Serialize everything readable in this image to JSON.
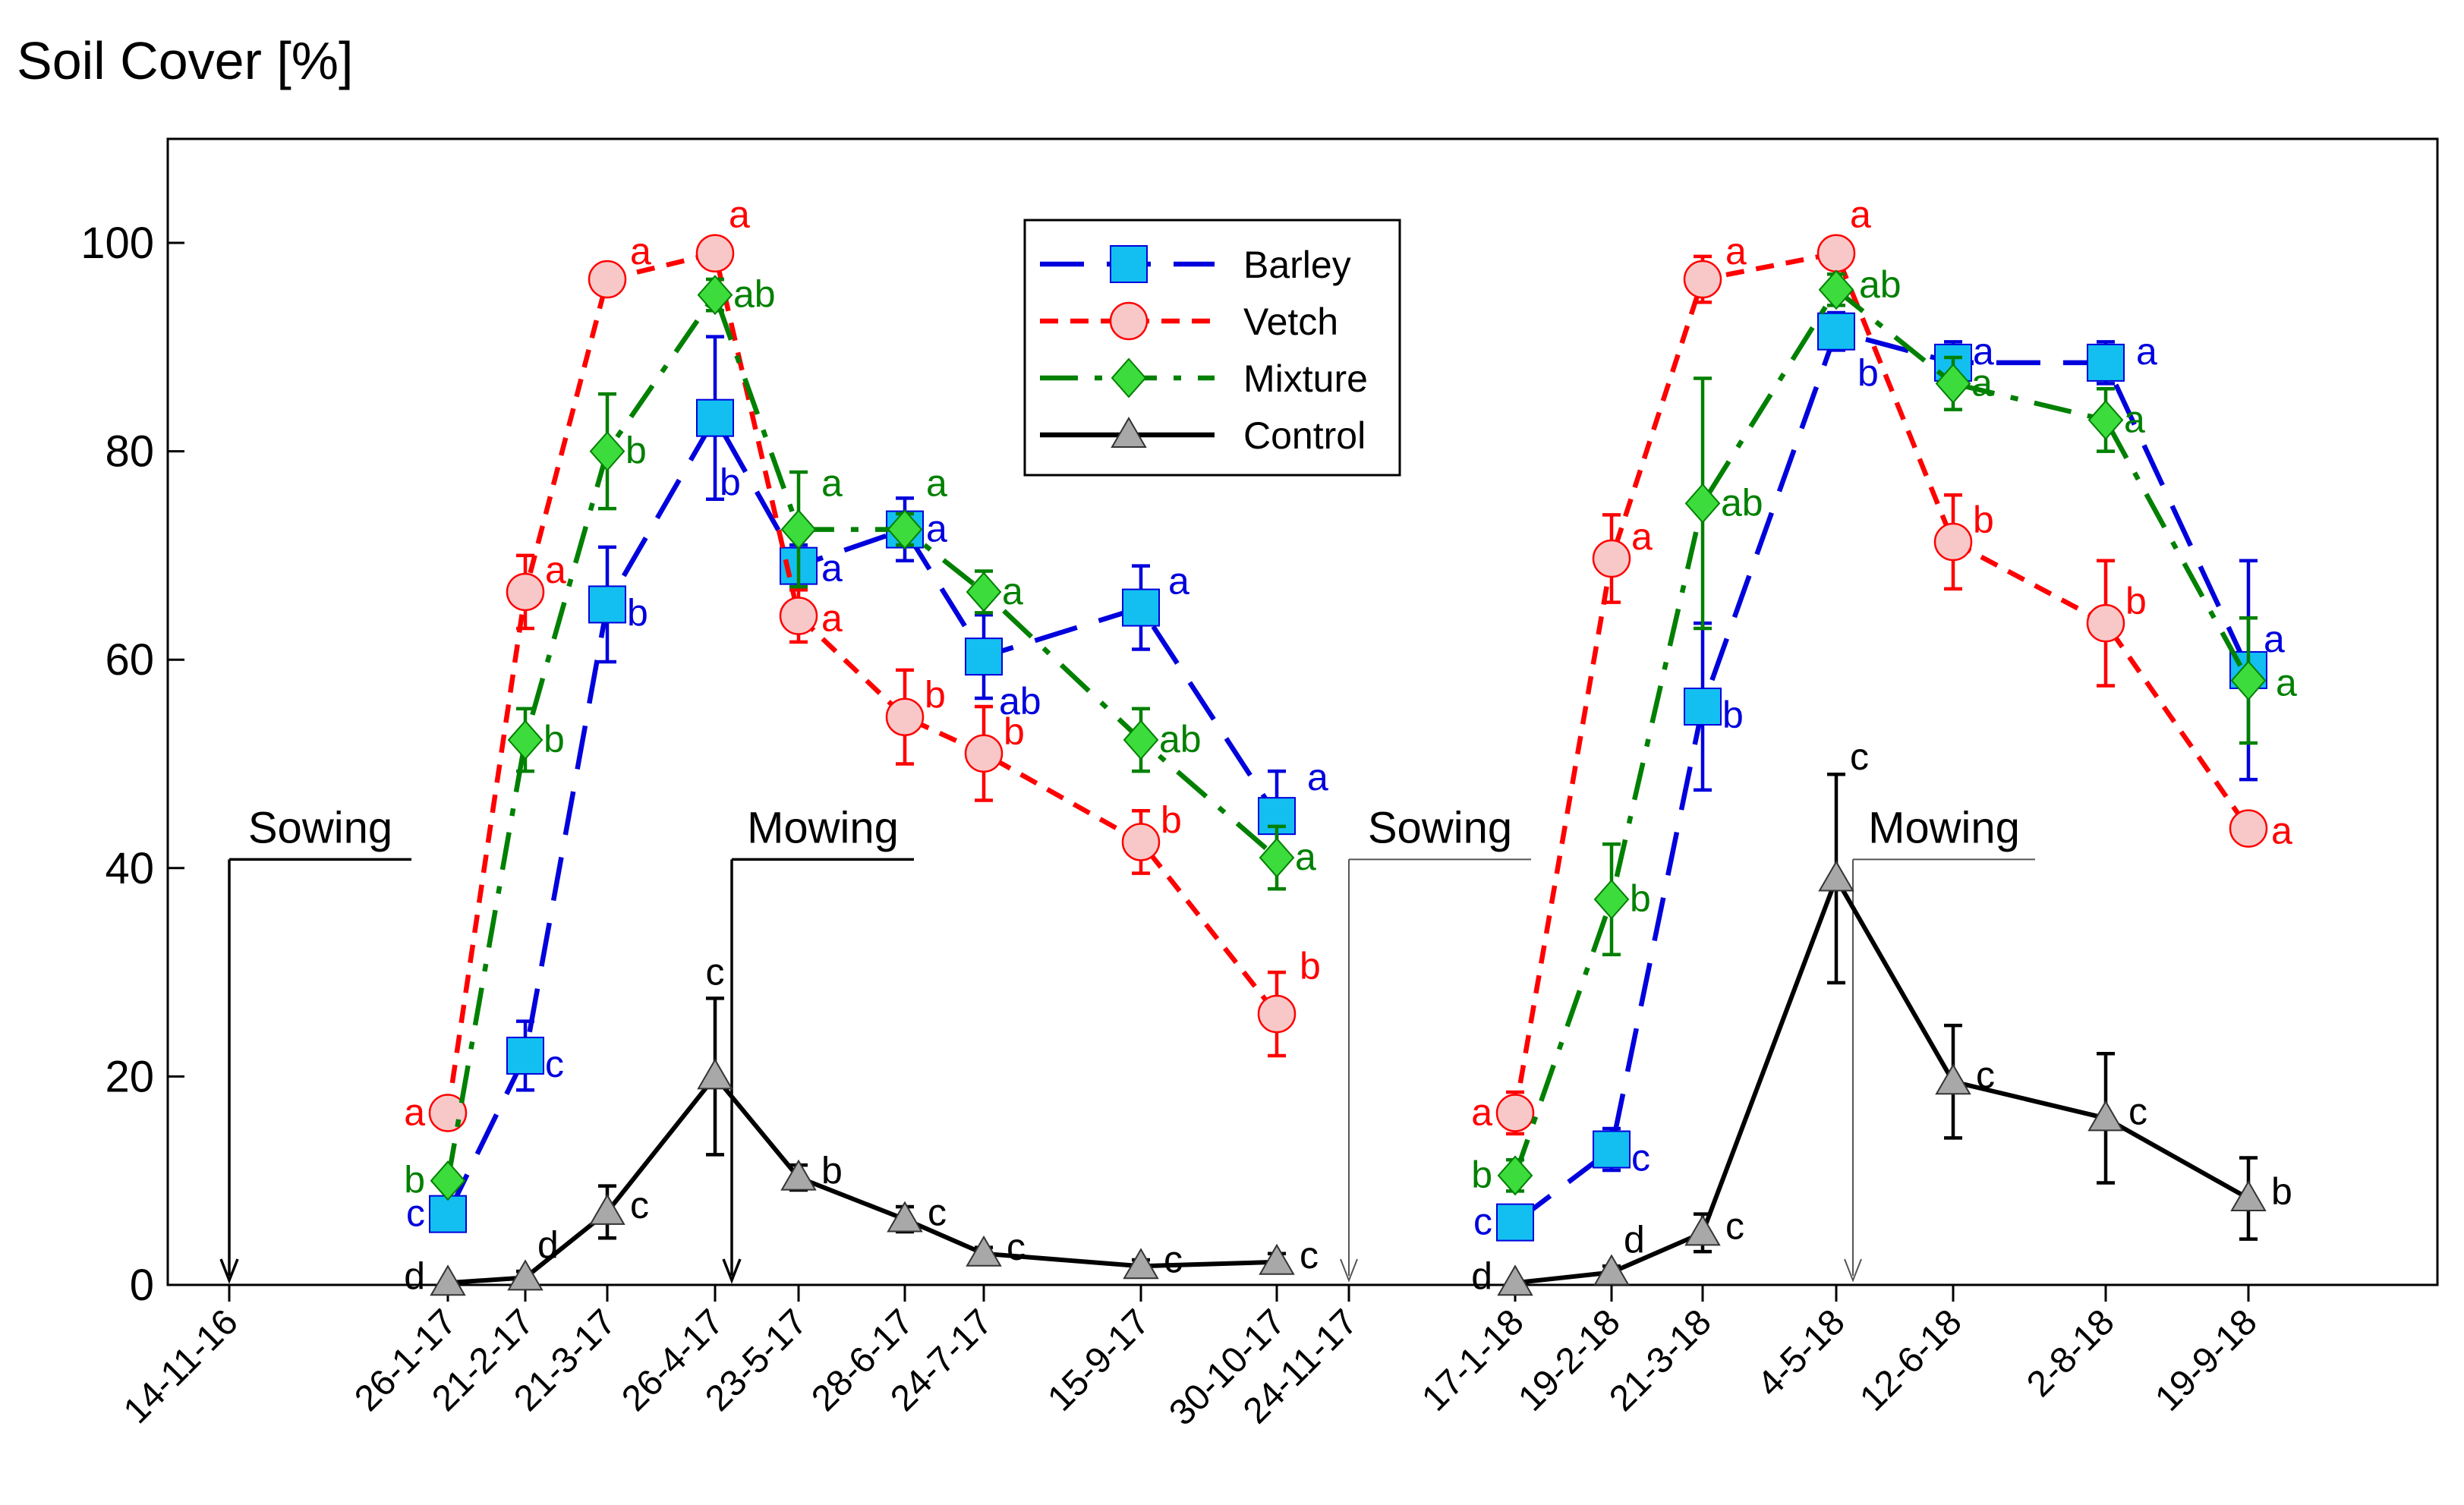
{
  "chart_data": {
    "type": "line",
    "title": "Soil Cover [%]",
    "xlabel": "",
    "ylabel": "",
    "ylim": [
      0,
      110
    ],
    "yticks": [
      0,
      20,
      40,
      60,
      80,
      100
    ],
    "grid": false,
    "legend_position": "top-center",
    "dates": [
      "14-11-16",
      "26-1-17",
      "21-2-17",
      "21-3-17",
      "26-4-17",
      "23-5-17",
      "28-6-17",
      "24-7-17",
      "15-9-17",
      "30-10-17",
      "24-11-17",
      "17-1-18",
      "19-2-18",
      "21-3-18",
      "4-5-18",
      "12-6-18",
      "2-8-18",
      "19-9-18"
    ],
    "series": [
      {
        "name": "Barley",
        "color": "#0000dd",
        "marker": "square",
        "marker_color": "#13bff0",
        "dash": "dashed",
        "segments": [
          [
            {
              "x": "26-1-17",
              "y": 6.8,
              "err": 0.8,
              "sig": "c"
            },
            {
              "x": "21-2-17",
              "y": 22,
              "err": 3.3,
              "sig": "c"
            },
            {
              "x": "21-3-17",
              "y": 65.3,
              "err": 5.5,
              "sig": "b"
            },
            {
              "x": "26-4-17",
              "y": 83.2,
              "err": 7.8,
              "sig": "b"
            },
            {
              "x": "23-5-17",
              "y": 69,
              "err": 2,
              "sig": "a"
            },
            {
              "x": "28-6-17",
              "y": 72.5,
              "err": 3,
              "sig": "a"
            },
            {
              "x": "24-7-17",
              "y": 60.3,
              "err": 4,
              "sig": "ab"
            },
            {
              "x": "15-9-17",
              "y": 65,
              "err": 4,
              "sig": "a"
            },
            {
              "x": "30-10-17",
              "y": 45,
              "err": 4.3,
              "sig": "a"
            }
          ],
          [
            {
              "x": "17-1-18",
              "y": 6,
              "err": 1,
              "sig": "c"
            },
            {
              "x": "19-2-18",
              "y": 13,
              "err": 2,
              "sig": "c"
            },
            {
              "x": "21-3-18",
              "y": 55.5,
              "err": 8,
              "sig": "b"
            },
            {
              "x": "4-5-18",
              "y": 91.5,
              "err": 1.8,
              "sig": "b"
            },
            {
              "x": "12-6-18",
              "y": 88.5,
              "err": 2,
              "sig": "a"
            },
            {
              "x": "2-8-18",
              "y": 88.5,
              "err": 2,
              "sig": "a"
            },
            {
              "x": "19-9-18",
              "y": 59,
              "err": 10.5,
              "sig": "a"
            }
          ]
        ]
      },
      {
        "name": "Vetch",
        "color": "#ff0000",
        "marker": "circle",
        "marker_color": "#f8c8c8",
        "dash": "short-dashed",
        "segments": [
          [
            {
              "x": "26-1-17",
              "y": 16.5,
              "err": 1.2,
              "sig": "a"
            },
            {
              "x": "21-2-17",
              "y": 66.5,
              "err": 3.5,
              "sig": "a"
            },
            {
              "x": "21-3-17",
              "y": 96.5,
              "err": 0.8,
              "sig": "a"
            },
            {
              "x": "26-4-17",
              "y": 99,
              "err": 1.2,
              "sig": "a"
            },
            {
              "x": "23-5-17",
              "y": 64.2,
              "err": 2.5,
              "sig": "a"
            },
            {
              "x": "28-6-17",
              "y": 54.5,
              "err": 4.5,
              "sig": "b"
            },
            {
              "x": "24-7-17",
              "y": 51,
              "err": 4.5,
              "sig": "b"
            },
            {
              "x": "15-9-17",
              "y": 42.5,
              "err": 3,
              "sig": "b"
            },
            {
              "x": "30-10-17",
              "y": 26,
              "err": 4,
              "sig": "b"
            }
          ],
          [
            {
              "x": "17-1-18",
              "y": 16.5,
              "err": 2,
              "sig": "a"
            },
            {
              "x": "19-2-18",
              "y": 69.7,
              "err": 4.2,
              "sig": "a"
            },
            {
              "x": "21-3-18",
              "y": 96.5,
              "err": 2.2,
              "sig": "a"
            },
            {
              "x": "4-5-18",
              "y": 99,
              "err": 0.8,
              "sig": "a"
            },
            {
              "x": "12-6-18",
              "y": 71.3,
              "err": 4.5,
              "sig": "b"
            },
            {
              "x": "2-8-18",
              "y": 63.5,
              "err": 6,
              "sig": "b"
            },
            {
              "x": "19-9-18",
              "y": 43.8,
              "err": 0.8,
              "sig": "a"
            }
          ]
        ]
      },
      {
        "name": "Mixture",
        "color": "#008000",
        "marker": "diamond",
        "marker_color": "#3cdc3c",
        "dash": "dash-dot",
        "segments": [
          [
            {
              "x": "26-1-17",
              "y": 10,
              "err": 0.8,
              "sig": "b"
            },
            {
              "x": "21-2-17",
              "y": 52.3,
              "err": 3,
              "sig": "b"
            },
            {
              "x": "21-3-17",
              "y": 80,
              "err": 5.5,
              "sig": "b"
            },
            {
              "x": "26-4-17",
              "y": 95,
              "err": 1.5,
              "sig": "ab"
            },
            {
              "x": "23-5-17",
              "y": 72.5,
              "err": 5.5,
              "sig": "a"
            },
            {
              "x": "28-6-17",
              "y": 72.5,
              "err": 1.5,
              "sig": "a"
            },
            {
              "x": "24-7-17",
              "y": 66.5,
              "err": 2,
              "sig": "a"
            },
            {
              "x": "15-9-17",
              "y": 52.3,
              "err": 3,
              "sig": "ab"
            },
            {
              "x": "30-10-17",
              "y": 41,
              "err": 3,
              "sig": "a"
            }
          ],
          [
            {
              "x": "17-1-18",
              "y": 10.5,
              "err": 1.5,
              "sig": "b"
            },
            {
              "x": "19-2-18",
              "y": 37,
              "err": 5.3,
              "sig": "b"
            },
            {
              "x": "21-3-18",
              "y": 75,
              "err": 12,
              "sig": "ab"
            },
            {
              "x": "4-5-18",
              "y": 95.5,
              "err": 1.5,
              "sig": "ab"
            },
            {
              "x": "12-6-18",
              "y": 86.5,
              "err": 2.5,
              "sig": "a"
            },
            {
              "x": "2-8-18",
              "y": 83,
              "err": 3,
              "sig": "a"
            },
            {
              "x": "19-9-18",
              "y": 58,
              "err": 6,
              "sig": "a"
            }
          ]
        ]
      },
      {
        "name": "Control",
        "color": "#000000",
        "marker": "triangle",
        "marker_color": "#a8a8a8",
        "dash": "solid",
        "segments": [
          [
            {
              "x": "26-1-17",
              "y": 0.2,
              "err": 0,
              "sig": "d"
            },
            {
              "x": "21-2-17",
              "y": 0.7,
              "err": 0.6,
              "sig": "d"
            },
            {
              "x": "21-3-17",
              "y": 7,
              "err": 2.5,
              "sig": "c"
            },
            {
              "x": "26-4-17",
              "y": 20,
              "err": 7.5,
              "sig": "c"
            },
            {
              "x": "23-5-17",
              "y": 10.3,
              "err": 1.2,
              "sig": "b"
            },
            {
              "x": "28-6-17",
              "y": 6.3,
              "err": 1.2,
              "sig": "c"
            },
            {
              "x": "24-7-17",
              "y": 3,
              "err": 0.6,
              "sig": "c"
            },
            {
              "x": "15-9-17",
              "y": 1.8,
              "err": 0.6,
              "sig": "c"
            },
            {
              "x": "30-10-17",
              "y": 2.2,
              "err": 0.8,
              "sig": "c"
            }
          ],
          [
            {
              "x": "17-1-18",
              "y": 0.2,
              "err": 0,
              "sig": "d"
            },
            {
              "x": "19-2-18",
              "y": 1.2,
              "err": 0.6,
              "sig": "d"
            },
            {
              "x": "21-3-18",
              "y": 5,
              "err": 1.8,
              "sig": "c"
            },
            {
              "x": "4-5-18",
              "y": 39,
              "err": 10,
              "sig": "c"
            },
            {
              "x": "12-6-18",
              "y": 19.5,
              "err": 5.4,
              "sig": "c"
            },
            {
              "x": "2-8-18",
              "y": 16,
              "err": 6.2,
              "sig": "c"
            },
            {
              "x": "19-9-18",
              "y": 8.3,
              "err": 3.9,
              "sig": "b"
            }
          ]
        ]
      }
    ],
    "annotations": [
      {
        "text": "Sowing",
        "x": "14-11-16",
        "y": 42
      },
      {
        "text": "Mowing",
        "x": "26-4-17",
        "y": 42
      },
      {
        "text": "Sowing",
        "x": "24-11-17",
        "y": 42
      },
      {
        "text": "Mowing",
        "x": "4-5-18",
        "y": 42
      }
    ]
  }
}
